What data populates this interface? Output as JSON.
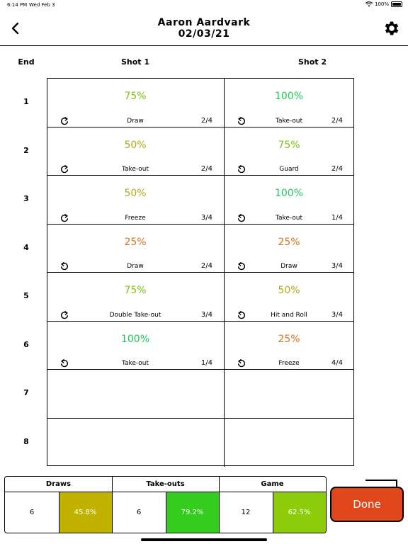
{
  "status_bar": {
    "time": "6:14 PM",
    "date": "Wed Feb 3",
    "battery": "100%"
  },
  "header": {
    "name": "Aaron Aardvark",
    "date": "02/03/21"
  },
  "columns": {
    "end": "End",
    "shot1": "Shot 1",
    "shot2": "Shot 2"
  },
  "colors": {
    "green": "#22c55e",
    "lime": "#7fc40a",
    "olive": "#b8a910",
    "orange": "#d4741e"
  },
  "ends": [
    {
      "label": "1",
      "shot1": {
        "pct": "75%",
        "color": "#7fc40a",
        "rotation": "clockwise",
        "type": "Draw",
        "score": "2/4"
      },
      "shot2": {
        "pct": "100%",
        "color": "#22c55e",
        "rotation": "counterclockwise",
        "type": "Take-out",
        "score": "2/4"
      }
    },
    {
      "label": "2",
      "shot1": {
        "pct": "50%",
        "color": "#b8a910",
        "rotation": "clockwise",
        "type": "Take-out",
        "score": "2/4"
      },
      "shot2": {
        "pct": "75%",
        "color": "#7fc40a",
        "rotation": "counterclockwise",
        "type": "Guard",
        "score": "2/4"
      }
    },
    {
      "label": "3",
      "shot1": {
        "pct": "50%",
        "color": "#b8a910",
        "rotation": "clockwise",
        "type": "Freeze",
        "score": "3/4"
      },
      "shot2": {
        "pct": "100%",
        "color": "#22c55e",
        "rotation": "counterclockwise",
        "type": "Take-out",
        "score": "1/4"
      }
    },
    {
      "label": "4",
      "shot1": {
        "pct": "25%",
        "color": "#d4741e",
        "rotation": "counterclockwise",
        "type": "Draw",
        "score": "2/4"
      },
      "shot2": {
        "pct": "25%",
        "color": "#d4741e",
        "rotation": "counterclockwise",
        "type": "Draw",
        "score": "3/4"
      }
    },
    {
      "label": "5",
      "shot1": {
        "pct": "75%",
        "color": "#7fc40a",
        "rotation": "clockwise",
        "type": "Double Take-out",
        "score": "3/4"
      },
      "shot2": {
        "pct": "50%",
        "color": "#b8a910",
        "rotation": "counterclockwise",
        "type": "Hit and Roll",
        "score": "3/4"
      }
    },
    {
      "label": "6",
      "shot1": {
        "pct": "100%",
        "color": "#22c55e",
        "rotation": "counterclockwise",
        "type": "Take-out",
        "score": "1/4"
      },
      "shot2": {
        "pct": "25%",
        "color": "#d4741e",
        "rotation": "counterclockwise",
        "type": "Freeze",
        "score": "4/4"
      }
    },
    {
      "label": "7",
      "shot1": null,
      "shot2": null
    },
    {
      "label": "8",
      "shot1": null,
      "shot2": null
    }
  ],
  "summary": [
    {
      "label": "Draws",
      "count": "6",
      "percent": "45.8%",
      "color": "#c2b200"
    },
    {
      "label": "Take-outs",
      "count": "6",
      "percent": "79.2%",
      "color": "#33cc1f"
    },
    {
      "label": "Game",
      "count": "12",
      "percent": "62.5%",
      "color": "#8ccc0a"
    }
  ],
  "done_button": {
    "label": "Done",
    "color": "#e0471d"
  }
}
